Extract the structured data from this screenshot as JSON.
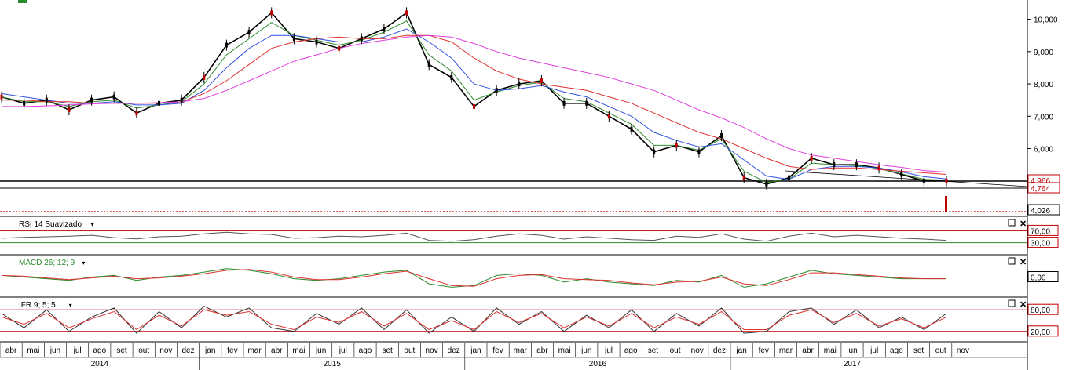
{
  "chart_data": [
    {
      "type": "line",
      "panel": "price",
      "title": "",
      "xlabel": "",
      "ylabel": "",
      "x": [
        "2014-04",
        "2014-05",
        "2014-06",
        "2014-07",
        "2014-08",
        "2014-09",
        "2014-10",
        "2014-11",
        "2014-12",
        "2015-01",
        "2015-02",
        "2015-03",
        "2015-04",
        "2015-05",
        "2015-06",
        "2015-07",
        "2015-08",
        "2015-09",
        "2015-10",
        "2015-11",
        "2015-12",
        "2016-01",
        "2016-02",
        "2016-03",
        "2016-04",
        "2016-05",
        "2016-06",
        "2016-07",
        "2016-08",
        "2016-09",
        "2016-10",
        "2016-11",
        "2016-12",
        "2017-01",
        "2017-02",
        "2017-03",
        "2017-04",
        "2017-05",
        "2017-06",
        "2017-07",
        "2017-08",
        "2017-09",
        "2017-10"
      ],
      "series": [
        {
          "name": "",
          "color": "#000000",
          "values": [
            7600,
            7400,
            7500,
            7200,
            7500,
            7600,
            7100,
            7400,
            7500,
            8200,
            9200,
            9600,
            10200,
            9400,
            9300,
            9100,
            9400,
            9700,
            10200,
            8600,
            8200,
            7300,
            7800,
            8000,
            8100,
            7400,
            7400,
            7000,
            6600,
            5900,
            6100,
            5900,
            6400,
            5100,
            4900,
            5100,
            5700,
            5500,
            5500,
            5400,
            5200,
            5000,
            5000
          ]
        },
        {
          "name": "",
          "color": "#2b8a2b",
          "values": [
            7600,
            7450,
            7450,
            7300,
            7450,
            7500,
            7250,
            7350,
            7450,
            8000,
            8900,
            9400,
            9900,
            9500,
            9350,
            9200,
            9350,
            9600,
            9950,
            8900,
            8400,
            7500,
            7750,
            7950,
            8050,
            7550,
            7450,
            7100,
            6750,
            6100,
            6100,
            5950,
            6300,
            5300,
            4950,
            5050,
            5550,
            5500,
            5480,
            5380,
            5220,
            5050,
            5020
          ]
        },
        {
          "name": "",
          "color": "#3050e0",
          "values": [
            7700,
            7600,
            7500,
            7400,
            7400,
            7450,
            7350,
            7350,
            7400,
            7800,
            8500,
            9100,
            9500,
            9500,
            9400,
            9300,
            9300,
            9450,
            9700,
            9300,
            8800,
            8000,
            7800,
            7850,
            7950,
            7750,
            7600,
            7300,
            7000,
            6500,
            6250,
            6050,
            6150,
            5650,
            5150,
            5050,
            5350,
            5450,
            5450,
            5400,
            5280,
            5130,
            5060
          ]
        },
        {
          "name": "",
          "color": "#e03030",
          "values": [
            7500,
            7500,
            7450,
            7450,
            7400,
            7400,
            7400,
            7400,
            7450,
            7700,
            8100,
            8600,
            9100,
            9300,
            9400,
            9450,
            9400,
            9400,
            9500,
            9500,
            9300,
            8800,
            8400,
            8150,
            8000,
            7900,
            7800,
            7600,
            7400,
            7100,
            6800,
            6500,
            6300,
            6000,
            5700,
            5450,
            5350,
            5400,
            5400,
            5350,
            5300,
            5250,
            5200
          ]
        },
        {
          "name": "",
          "color": "#e040e0",
          "values": [
            7300,
            7300,
            7320,
            7350,
            7380,
            7400,
            7400,
            7420,
            7450,
            7550,
            7800,
            8100,
            8400,
            8700,
            8900,
            9100,
            9250,
            9350,
            9450,
            9500,
            9450,
            9250,
            9000,
            8800,
            8650,
            8500,
            8350,
            8200,
            8000,
            7800,
            7500,
            7200,
            6950,
            6650,
            6300,
            6000,
            5800,
            5700,
            5600,
            5500,
            5420,
            5320,
            5270
          ]
        }
      ],
      "ylim": [
        4000,
        10500
      ],
      "yticks": [
        "10,000",
        "9,000",
        "8,000",
        "7,000",
        "6,000"
      ],
      "price_tags": [
        "4,966",
        "4,764",
        "4,026"
      ],
      "month_labels": [
        "abr",
        "mai",
        "jun",
        "jul",
        "ago",
        "set",
        "out",
        "nov",
        "dez",
        "jan",
        "fev",
        "mar",
        "abr",
        "mai",
        "jun",
        "jul",
        "ago",
        "set",
        "out",
        "nov",
        "dez",
        "jan",
        "fev",
        "mar",
        "abr",
        "mai",
        "jun",
        "jul",
        "ago",
        "set",
        "out",
        "nov",
        "dez",
        "jan",
        "fev",
        "mar",
        "abr",
        "mai",
        "jun",
        "jul",
        "ago",
        "set",
        "out",
        "nov"
      ],
      "year_labels": [
        "2014",
        "2015",
        "2016",
        "2017"
      ]
    },
    {
      "type": "line",
      "panel": "rsi",
      "title": "RSI 14 Suavizado",
      "ylim": [
        0,
        100
      ],
      "levels": [
        "70,00",
        "30,00"
      ],
      "series": [
        {
          "name": "",
          "color": "#555555",
          "values": [
            45,
            48,
            50,
            52,
            55,
            47,
            43,
            50,
            52,
            60,
            65,
            60,
            58,
            45,
            47,
            52,
            50,
            55,
            62,
            38,
            35,
            40,
            52,
            60,
            55,
            42,
            50,
            45,
            40,
            38,
            52,
            48,
            60,
            42,
            35,
            52,
            62,
            50,
            55,
            50,
            45,
            42,
            38
          ]
        }
      ]
    },
    {
      "type": "line",
      "panel": "macd",
      "title": "MACD 26; 12; 9",
      "ylim": [
        -1,
        1
      ],
      "levels": [
        "0,00"
      ],
      "series": [
        {
          "name": "",
          "color": "#2b8a2b",
          "values": [
            0.1,
            0.0,
            -0.1,
            -0.2,
            0.0,
            0.1,
            -0.2,
            0.0,
            0.1,
            0.3,
            0.5,
            0.4,
            0.2,
            -0.1,
            -0.2,
            -0.1,
            0.1,
            0.3,
            0.4,
            -0.4,
            -0.6,
            -0.5,
            0.1,
            0.2,
            0.1,
            -0.3,
            -0.1,
            -0.3,
            -0.4,
            -0.5,
            -0.2,
            -0.3,
            0.1,
            -0.6,
            -0.4,
            0.0,
            0.4,
            0.2,
            0.1,
            0.0,
            -0.1,
            -0.1,
            -0.1
          ]
        },
        {
          "name": "",
          "color": "#e03030",
          "values": [
            0.1,
            0.05,
            -0.05,
            -0.15,
            -0.05,
            0.05,
            -0.1,
            -0.05,
            0.05,
            0.2,
            0.4,
            0.45,
            0.3,
            0.0,
            -0.15,
            -0.15,
            0.0,
            0.2,
            0.35,
            -0.1,
            -0.5,
            -0.55,
            -0.1,
            0.1,
            0.15,
            -0.1,
            -0.15,
            -0.2,
            -0.35,
            -0.45,
            -0.3,
            -0.25,
            0.0,
            -0.4,
            -0.5,
            -0.15,
            0.25,
            0.25,
            0.15,
            0.05,
            -0.05,
            -0.1,
            -0.1
          ]
        }
      ]
    },
    {
      "type": "line",
      "panel": "stochastic",
      "title": "IFR 9; 5; 5",
      "ylim": [
        0,
        100
      ],
      "levels": [
        "80,00",
        "20,00"
      ],
      "series": [
        {
          "name": "",
          "color": "#333333",
          "values": [
            70,
            30,
            80,
            20,
            60,
            85,
            15,
            75,
            30,
            90,
            60,
            85,
            30,
            20,
            70,
            40,
            85,
            25,
            80,
            15,
            60,
            20,
            85,
            40,
            75,
            20,
            65,
            30,
            80,
            20,
            70,
            35,
            85,
            15,
            20,
            75,
            85,
            40,
            80,
            30,
            60,
            25,
            70
          ]
        },
        {
          "name": "",
          "color": "#e03030",
          "values": [
            60,
            40,
            70,
            30,
            55,
            75,
            25,
            65,
            35,
            80,
            65,
            75,
            40,
            25,
            60,
            45,
            75,
            35,
            70,
            25,
            50,
            25,
            75,
            45,
            70,
            30,
            60,
            35,
            70,
            30,
            60,
            40,
            75,
            25,
            25,
            65,
            80,
            45,
            70,
            35,
            55,
            30,
            60
          ]
        }
      ]
    }
  ]
}
